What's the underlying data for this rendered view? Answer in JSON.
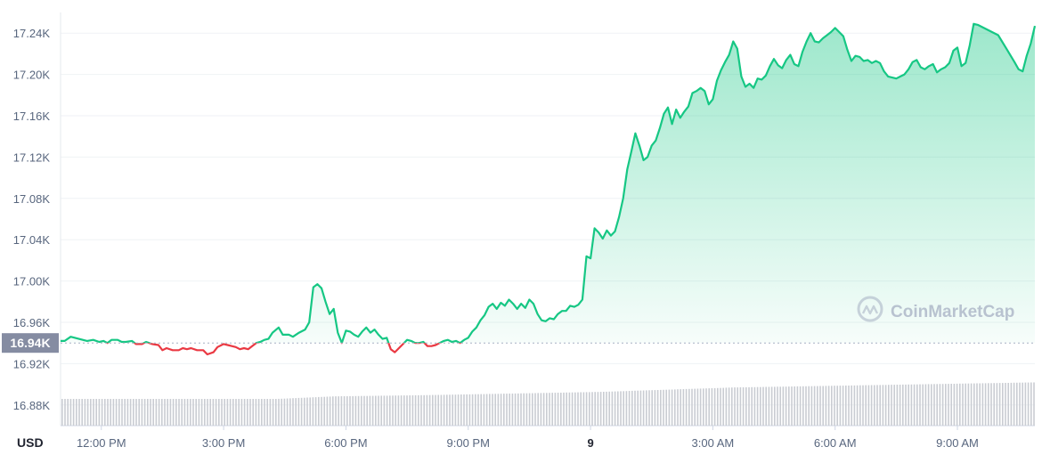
{
  "chart_data": {
    "type": "line",
    "currency_label": "USD",
    "watermark": "CoinMarketCap",
    "baseline_value": 16940,
    "baseline_label": "16.94K",
    "ylim": [
      16860,
      17260
    ],
    "y_ticks": [
      {
        "value": 16880,
        "label": "16.88K"
      },
      {
        "value": 16920,
        "label": "16.92K"
      },
      {
        "value": 16960,
        "label": "16.96K"
      },
      {
        "value": 17000,
        "label": "17.00K"
      },
      {
        "value": 17040,
        "label": "17.04K"
      },
      {
        "value": 17080,
        "label": "17.08K"
      },
      {
        "value": 17120,
        "label": "17.12K"
      },
      {
        "value": 17160,
        "label": "17.16K"
      },
      {
        "value": 17200,
        "label": "17.20K"
      },
      {
        "value": 17240,
        "label": "17.24K"
      }
    ],
    "xlim": [
      11.0,
      34.9
    ],
    "x_ticks": [
      {
        "value": 12,
        "label": "12:00 PM",
        "bold": false
      },
      {
        "value": 15,
        "label": "3:00 PM",
        "bold": false
      },
      {
        "value": 18,
        "label": "6:00 PM",
        "bold": false
      },
      {
        "value": 21,
        "label": "9:00 PM",
        "bold": false
      },
      {
        "value": 24,
        "label": "9",
        "bold": true
      },
      {
        "value": 27,
        "label": "3:00 AM",
        "bold": false
      },
      {
        "value": 30,
        "label": "6:00 AM",
        "bold": false
      },
      {
        "value": 33,
        "label": "9:00 AM",
        "bold": false
      }
    ],
    "colors": {
      "up": "#16c784",
      "down": "#ea3943",
      "volume": "#c9ccd2",
      "grid": "#eff2f5",
      "axis_text": "#58667e",
      "baseline_badge": "#858ca2"
    },
    "price_series": [
      [
        11.0,
        16942
      ],
      [
        11.1,
        16942
      ],
      [
        11.25,
        16946
      ],
      [
        11.45,
        16944
      ],
      [
        11.65,
        16942
      ],
      [
        11.8,
        16943
      ],
      [
        11.95,
        16941
      ],
      [
        12.05,
        16942
      ],
      [
        12.15,
        16940
      ],
      [
        12.25,
        16943
      ],
      [
        12.4,
        16943
      ],
      [
        12.5,
        16941
      ],
      [
        12.6,
        16941
      ],
      [
        12.75,
        16942
      ],
      [
        12.85,
        16939
      ],
      [
        13.0,
        16939
      ],
      [
        13.1,
        16941
      ],
      [
        13.25,
        16939
      ],
      [
        13.4,
        16938
      ],
      [
        13.5,
        16933
      ],
      [
        13.6,
        16935
      ],
      [
        13.75,
        16933
      ],
      [
        13.9,
        16933
      ],
      [
        14.0,
        16935
      ],
      [
        14.1,
        16934
      ],
      [
        14.2,
        16935
      ],
      [
        14.35,
        16933
      ],
      [
        14.5,
        16933
      ],
      [
        14.6,
        16929
      ],
      [
        14.75,
        16931
      ],
      [
        14.85,
        16936
      ],
      [
        15.0,
        16939
      ],
      [
        15.1,
        16938
      ],
      [
        15.2,
        16937
      ],
      [
        15.3,
        16936
      ],
      [
        15.4,
        16934
      ],
      [
        15.5,
        16935
      ],
      [
        15.6,
        16934
      ],
      [
        15.7,
        16937
      ],
      [
        15.8,
        16940
      ],
      [
        15.9,
        16941
      ],
      [
        16.0,
        16943
      ],
      [
        16.1,
        16944
      ],
      [
        16.2,
        16950
      ],
      [
        16.35,
        16955
      ],
      [
        16.45,
        16948
      ],
      [
        16.6,
        16948
      ],
      [
        16.7,
        16946
      ],
      [
        16.85,
        16950
      ],
      [
        17.0,
        16953
      ],
      [
        17.1,
        16960
      ],
      [
        17.2,
        16994
      ],
      [
        17.3,
        16997
      ],
      [
        17.4,
        16993
      ],
      [
        17.5,
        16980
      ],
      [
        17.6,
        16968
      ],
      [
        17.7,
        16973
      ],
      [
        17.8,
        16950
      ],
      [
        17.9,
        16940
      ],
      [
        18.0,
        16952
      ],
      [
        18.1,
        16951
      ],
      [
        18.2,
        16948
      ],
      [
        18.3,
        16946
      ],
      [
        18.4,
        16951
      ],
      [
        18.5,
        16955
      ],
      [
        18.6,
        16950
      ],
      [
        18.7,
        16953
      ],
      [
        18.8,
        16948
      ],
      [
        18.9,
        16944
      ],
      [
        19.0,
        16945
      ],
      [
        19.1,
        16934
      ],
      [
        19.2,
        16931
      ],
      [
        19.3,
        16935
      ],
      [
        19.4,
        16939
      ],
      [
        19.5,
        16943
      ],
      [
        19.6,
        16942
      ],
      [
        19.7,
        16940
      ],
      [
        19.8,
        16940
      ],
      [
        19.9,
        16941
      ],
      [
        20.0,
        16937
      ],
      [
        20.1,
        16937
      ],
      [
        20.2,
        16938
      ],
      [
        20.3,
        16940
      ],
      [
        20.4,
        16942
      ],
      [
        20.5,
        16943
      ],
      [
        20.6,
        16941
      ],
      [
        20.7,
        16942
      ],
      [
        20.8,
        16940
      ],
      [
        20.9,
        16943
      ],
      [
        21.0,
        16945
      ],
      [
        21.1,
        16951
      ],
      [
        21.2,
        16955
      ],
      [
        21.3,
        16962
      ],
      [
        21.4,
        16967
      ],
      [
        21.5,
        16975
      ],
      [
        21.6,
        16978
      ],
      [
        21.7,
        16973
      ],
      [
        21.8,
        16979
      ],
      [
        21.9,
        16976
      ],
      [
        22.0,
        16982
      ],
      [
        22.1,
        16978
      ],
      [
        22.2,
        16973
      ],
      [
        22.3,
        16978
      ],
      [
        22.4,
        16974
      ],
      [
        22.5,
        16982
      ],
      [
        22.6,
        16978
      ],
      [
        22.7,
        16968
      ],
      [
        22.8,
        16962
      ],
      [
        22.9,
        16961
      ],
      [
        23.0,
        16964
      ],
      [
        23.1,
        16963
      ],
      [
        23.2,
        16968
      ],
      [
        23.3,
        16971
      ],
      [
        23.4,
        16971
      ],
      [
        23.5,
        16976
      ],
      [
        23.6,
        16975
      ],
      [
        23.7,
        16977
      ],
      [
        23.8,
        16982
      ],
      [
        23.9,
        17024
      ],
      [
        24.0,
        17022
      ],
      [
        24.1,
        17051
      ],
      [
        24.2,
        17047
      ],
      [
        24.3,
        17041
      ],
      [
        24.4,
        17049
      ],
      [
        24.5,
        17044
      ],
      [
        24.6,
        17048
      ],
      [
        24.7,
        17062
      ],
      [
        24.8,
        17080
      ],
      [
        24.9,
        17108
      ],
      [
        25.0,
        17125
      ],
      [
        25.1,
        17143
      ],
      [
        25.2,
        17131
      ],
      [
        25.3,
        17117
      ],
      [
        25.4,
        17120
      ],
      [
        25.5,
        17131
      ],
      [
        25.6,
        17136
      ],
      [
        25.7,
        17148
      ],
      [
        25.8,
        17162
      ],
      [
        25.9,
        17168
      ],
      [
        26.0,
        17152
      ],
      [
        26.1,
        17166
      ],
      [
        26.2,
        17158
      ],
      [
        26.3,
        17164
      ],
      [
        26.4,
        17169
      ],
      [
        26.5,
        17182
      ],
      [
        26.6,
        17184
      ],
      [
        26.7,
        17187
      ],
      [
        26.8,
        17184
      ],
      [
        26.9,
        17171
      ],
      [
        27.0,
        17176
      ],
      [
        27.1,
        17194
      ],
      [
        27.2,
        17204
      ],
      [
        27.3,
        17212
      ],
      [
        27.4,
        17219
      ],
      [
        27.5,
        17232
      ],
      [
        27.6,
        17225
      ],
      [
        27.7,
        17198
      ],
      [
        27.8,
        17188
      ],
      [
        27.9,
        17191
      ],
      [
        28.0,
        17187
      ],
      [
        28.1,
        17196
      ],
      [
        28.2,
        17195
      ],
      [
        28.3,
        17199
      ],
      [
        28.4,
        17208
      ],
      [
        28.5,
        17215
      ],
      [
        28.6,
        17209
      ],
      [
        28.7,
        17206
      ],
      [
        28.8,
        17214
      ],
      [
        28.9,
        17219
      ],
      [
        29.0,
        17210
      ],
      [
        29.1,
        17208
      ],
      [
        29.2,
        17222
      ],
      [
        29.3,
        17232
      ],
      [
        29.4,
        17240
      ],
      [
        29.5,
        17232
      ],
      [
        29.6,
        17231
      ],
      [
        29.7,
        17235
      ],
      [
        29.8,
        17238
      ],
      [
        29.9,
        17241
      ],
      [
        30.0,
        17245
      ],
      [
        30.1,
        17241
      ],
      [
        30.2,
        17237
      ],
      [
        30.3,
        17224
      ],
      [
        30.4,
        17213
      ],
      [
        30.5,
        17218
      ],
      [
        30.6,
        17217
      ],
      [
        30.7,
        17213
      ],
      [
        30.8,
        17214
      ],
      [
        30.9,
        17211
      ],
      [
        31.0,
        17213
      ],
      [
        31.1,
        17211
      ],
      [
        31.2,
        17203
      ],
      [
        31.3,
        17198
      ],
      [
        31.4,
        17197
      ],
      [
        31.5,
        17196
      ],
      [
        31.6,
        17198
      ],
      [
        31.7,
        17200
      ],
      [
        31.8,
        17205
      ],
      [
        31.9,
        17212
      ],
      [
        32.0,
        17214
      ],
      [
        32.1,
        17207
      ],
      [
        32.2,
        17205
      ],
      [
        32.3,
        17208
      ],
      [
        32.4,
        17210
      ],
      [
        32.5,
        17202
      ],
      [
        32.6,
        17205
      ],
      [
        32.7,
        17207
      ],
      [
        32.8,
        17211
      ],
      [
        32.9,
        17223
      ],
      [
        33.0,
        17226
      ],
      [
        33.1,
        17208
      ],
      [
        33.2,
        17211
      ],
      [
        33.3,
        17228
      ],
      [
        33.4,
        17249
      ],
      [
        33.5,
        17248
      ],
      [
        34.0,
        17238
      ],
      [
        34.2,
        17225
      ],
      [
        34.4,
        17212
      ],
      [
        34.5,
        17205
      ],
      [
        34.6,
        17203
      ],
      [
        34.7,
        17218
      ],
      [
        34.8,
        17230
      ],
      [
        34.9,
        17247
      ]
    ],
    "volume_series": {
      "segments": [
        [
          11.0,
          0.42
        ],
        [
          16.3,
          0.42
        ],
        [
          17.7,
          0.46
        ],
        [
          20.0,
          0.48
        ],
        [
          24.2,
          0.53
        ],
        [
          27.5,
          0.6
        ],
        [
          33.0,
          0.66
        ],
        [
          34.9,
          0.68
        ]
      ],
      "scale_note": "relative bar heights as fraction of volume pane"
    }
  }
}
